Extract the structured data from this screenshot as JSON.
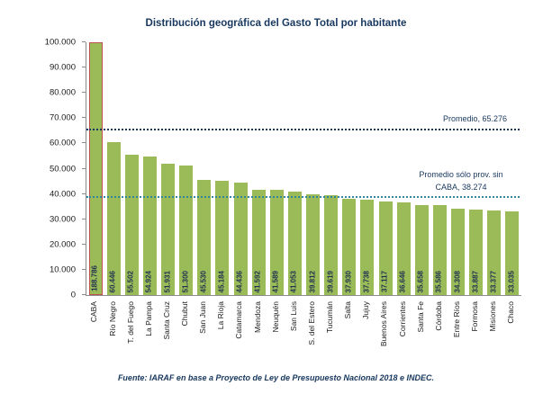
{
  "footer": {
    "source": "Fuente: IARAF en base a Proyecto de Ley de Presupuesto Nacional 2018 e INDEC."
  },
  "chart_data": {
    "type": "bar",
    "title": "Distribución geográfica del Gasto Total por habitante",
    "categories": [
      "CABA",
      "Río Negro",
      "T. del Fuego",
      "La Pampa",
      "Santa Cruz",
      "Chubut",
      "San Juan",
      "La Rioja",
      "Catamarca",
      "Mendoza",
      "Neuquén",
      "San Luis",
      "S. del Estero",
      "Tucumán",
      "Salta",
      "Jujuy",
      "Buenos Aires",
      "Corrientes",
      "Santa Fe",
      "Córdoba",
      "Entre Ríos",
      "Formosa",
      "Misiones",
      "Chaco"
    ],
    "values": [
      188786,
      60446,
      55502,
      54924,
      51931,
      51300,
      45530,
      45184,
      44436,
      41592,
      41589,
      41053,
      39812,
      39619,
      37930,
      37738,
      37117,
      36646,
      35658,
      35586,
      34308,
      33887,
      33377,
      33035
    ],
    "value_labels": [
      "188.786",
      "60.446",
      "55.502",
      "54.924",
      "51.931",
      "51.300",
      "45.530",
      "45.184",
      "44.436",
      "41.592",
      "41.589",
      "41.053",
      "39.812",
      "39.619",
      "37.930",
      "37.738",
      "37.117",
      "36.646",
      "35.658",
      "35.586",
      "34.308",
      "33.887",
      "33.377",
      "33.035"
    ],
    "xlabel": "",
    "ylabel": "",
    "ylim": [
      0,
      100000
    ],
    "yticks": [
      "0",
      "10.000",
      "20.000",
      "30.000",
      "40.000",
      "50.000",
      "60.000",
      "70.000",
      "80.000",
      "90.000",
      "100.000"
    ],
    "grid": false,
    "legend": false,
    "highlight_category": "CABA",
    "bars_clipped_at_ymax": [
      "CABA"
    ],
    "reference_lines": [
      {
        "label": "Promedio, 65.276",
        "value": 65276,
        "color": "#17375E"
      },
      {
        "label": "Promedio sólo prov. sin CABA, 38.274",
        "value": 38274,
        "color": "#31859C"
      }
    ],
    "colors": {
      "bar_fill": "#9BBB59",
      "highlight_border": "#C0504D",
      "title_text": "#17375E",
      "axis_line": "#8c8c8c"
    }
  }
}
